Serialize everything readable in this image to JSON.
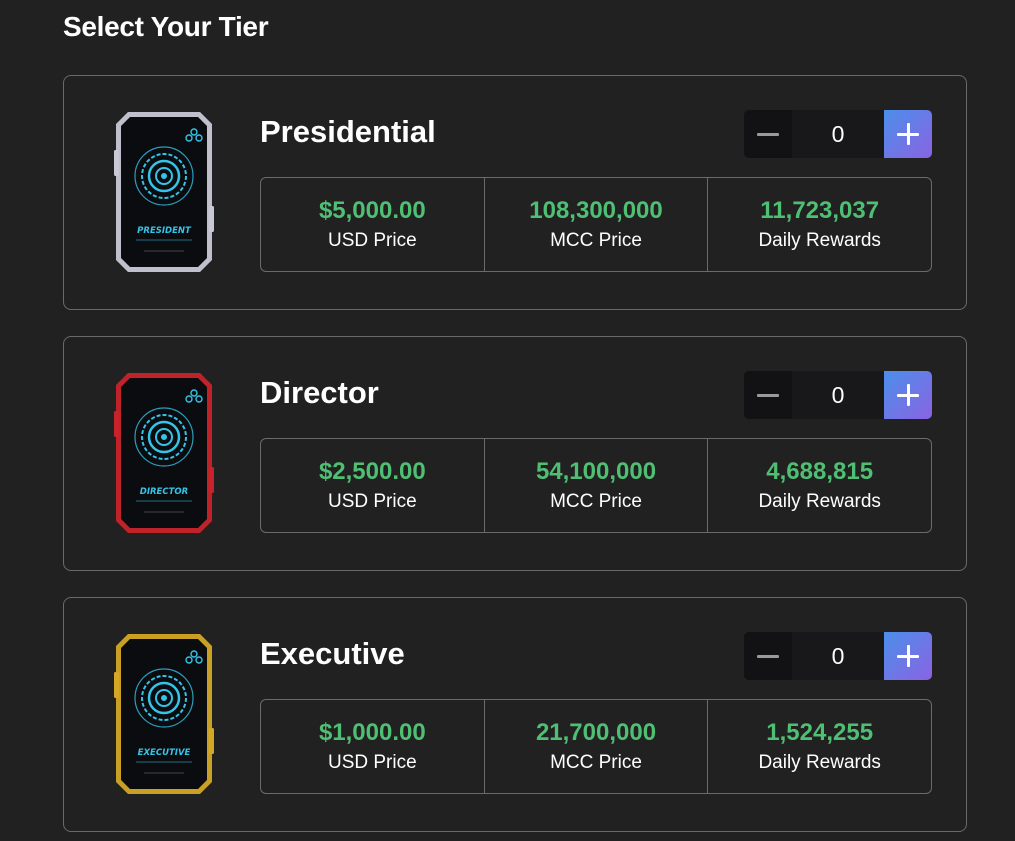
{
  "page": {
    "title": "Select Your Tier"
  },
  "stat_labels": {
    "usd": "USD Price",
    "mcc": "MCC Price",
    "rewards": "Daily Rewards"
  },
  "tiers": [
    {
      "name": "Presidential",
      "card_label": "PRESIDENT",
      "frame_color": "#c9c9d6",
      "quantity": "0",
      "usd_price": "$5,000.00",
      "mcc_price": "108,300,000",
      "daily_rewards": "11,723,037"
    },
    {
      "name": "Director",
      "card_label": "DIRECTOR",
      "frame_color": "#c8232a",
      "quantity": "0",
      "usd_price": "$2,500.00",
      "mcc_price": "54,100,000",
      "daily_rewards": "4,688,815"
    },
    {
      "name": "Executive",
      "card_label": "EXECUTIVE",
      "frame_color": "#d4a825",
      "quantity": "0",
      "usd_price": "$1,000.00",
      "mcc_price": "21,700,000",
      "daily_rewards": "1,524,255"
    }
  ],
  "colors": {
    "background": "#212121",
    "border": "#6a6a6a",
    "value_green": "#4fbf73",
    "plus_gradient_start": "#4b8fea",
    "plus_gradient_end": "#8a63e2",
    "card_glow": "#35c3e8"
  },
  "icons": {
    "minus": "minus-icon",
    "plus": "plus-icon"
  }
}
